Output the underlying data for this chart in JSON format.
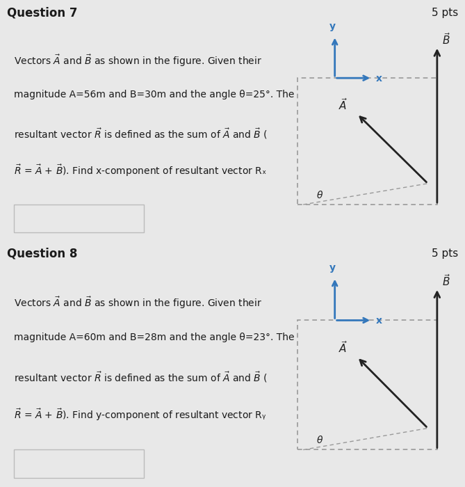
{
  "bg_color": "#e8e8e8",
  "white_bg": "#f5f5f5",
  "header_bg": "#c8c8c8",
  "content_bg": "#f0f0f0",
  "question7": {
    "title": "Question 7",
    "pts": "5 pts",
    "lines": [
      "Vectors $\\vec{A}$ and $\\vec{B}$ as shown in the figure. Given their",
      "magnitude A=56m and B=30m and the angle θ=25°. The",
      "resultant vector $\\vec{R}$ is defined as the sum of $\\vec{A}$ and $\\vec{B}$ (",
      "$\\vec{R}$ = $\\vec{A}$ + $\\vec{B}$). Find x-component of resultant vector Rₓ"
    ]
  },
  "question8": {
    "title": "Question 8",
    "pts": "5 pts",
    "lines": [
      "Vectors $\\vec{A}$ and $\\vec{B}$ as shown in the figure. Given their",
      "magnitude A=60m and B=28m and the angle θ=23°. The",
      "resultant vector $\\vec{R}$ is defined as the sum of $\\vec{A}$ and $\\vec{B}$ (",
      "$\\vec{R}$ = $\\vec{A}$ + $\\vec{B}$). Find y-component of resultant vector Rᵧ"
    ]
  },
  "text_color": "#1a1a1a",
  "blue_color": "#3377bb",
  "dark_color": "#222222",
  "dashed_color": "#999999",
  "border_color": "#bbbbbb"
}
